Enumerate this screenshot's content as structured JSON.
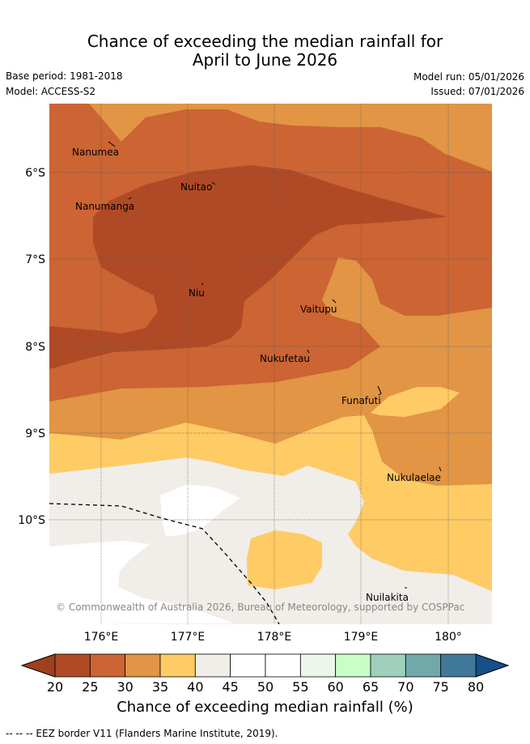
{
  "header": {
    "title_line1": "Chance of exceeding the median rainfall for",
    "title_line2": "April to June 2026",
    "base_period": "Base period: 1981-2018",
    "model": "Model: ACCESS-S2",
    "model_run": "Model run: 05/01/2026",
    "issued": "Issued: 07/01/2026"
  },
  "map": {
    "lon_range": [
      175.5,
      180.5
    ],
    "lat_range": [
      -11.2,
      -5.2
    ],
    "lon_ticks": [
      "176°E",
      "177°E",
      "178°E",
      "179°E",
      "180°"
    ],
    "lat_ticks": [
      "6°S",
      "7°S",
      "8°S",
      "9°S",
      "10°S"
    ],
    "grid": true,
    "places": [
      {
        "name": "Nanumea"
      },
      {
        "name": "Nuitao"
      },
      {
        "name": "Nanumanga"
      },
      {
        "name": "Niu"
      },
      {
        "name": "Vaitupu"
      },
      {
        "name": "Nukufetau"
      },
      {
        "name": "Funafuti"
      },
      {
        "name": "Nukulaelae"
      },
      {
        "name": "Nuilakita"
      }
    ],
    "credit": "© Commonwealth of Australia 2026, Bureau of Meteorology, supported by COSPPac",
    "colors": {
      "p20_25": "#b04a26",
      "p25_30": "#cc6433",
      "p30_35": "#e19545",
      "p35_40": "#fecb65",
      "p40_45": "#f1ede8",
      "p45_55": "#ffffff"
    }
  },
  "colorbar": {
    "ticks": [
      "20",
      "25",
      "30",
      "35",
      "40",
      "45",
      "50",
      "55",
      "60",
      "65",
      "70",
      "75",
      "80"
    ],
    "colors": [
      "#b04a26",
      "#cc6433",
      "#e19545",
      "#fecb65",
      "#f1ede8",
      "#ffffff",
      "#ffffff",
      "#ecf6ea",
      "#c8fec8",
      "#9ed0bb",
      "#71a9ab",
      "#3f789a"
    ],
    "under_color": "#a0401f",
    "over_color": "#174f88",
    "label": "Chance of exceeding median rainfall (%)"
  },
  "footnote": "--  --  -- EEZ border V11 (Flanders Marine Institute, 2019)."
}
